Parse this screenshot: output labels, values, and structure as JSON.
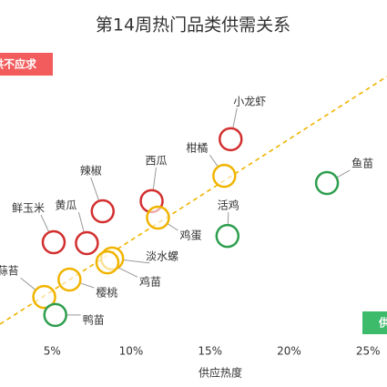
{
  "chart_data": {
    "type": "scatter",
    "title": "第14周热门品类供需关系",
    "xlabel": "供应热度",
    "xlim": [
      1.7,
      26.2
    ],
    "ylim": [
      0,
      100
    ],
    "xticks": [
      {
        "value": 5,
        "label": "5%"
      },
      {
        "value": 10,
        "label": "10%"
      },
      {
        "value": 15,
        "label": "15%"
      },
      {
        "value": 20,
        "label": "20%"
      },
      {
        "value": 25,
        "label": "25%"
      }
    ],
    "labels": [
      "小龙虾",
      "柑橘",
      "鱼苗",
      "辣椒",
      "西瓜",
      "鸡蛋",
      "活鸡",
      "鲜玉米",
      "黄瓜",
      "淡水螺",
      "鸡苗",
      "蒜苔",
      "樱桃",
      "鸭苗"
    ],
    "x": [
      16.3,
      15.9,
      22.4,
      8.2,
      11.3,
      11.7,
      16.1,
      5.1,
      7.2,
      8.8,
      8.5,
      4.5,
      6.1,
      5.2
    ],
    "values": [
      65.8,
      53.6,
      51.2,
      41.8,
      45.2,
      39.7,
      33.6,
      31.5,
      31.2,
      26.1,
      24.8,
      13.3,
      19.1,
      7.3
    ],
    "colors": [
      "#d32f2f",
      "#f0b400",
      "#2e9e4f",
      "#d32f2f",
      "#d32f2f",
      "#f0b400",
      "#2e9e4f",
      "#d32f2f",
      "#d32f2f",
      "#f0b400",
      "#f0b400",
      "#f0b400",
      "#f0b400",
      "#2e9e4f"
    ],
    "zone_labels": [
      "供不应求",
      "供"
    ]
  }
}
